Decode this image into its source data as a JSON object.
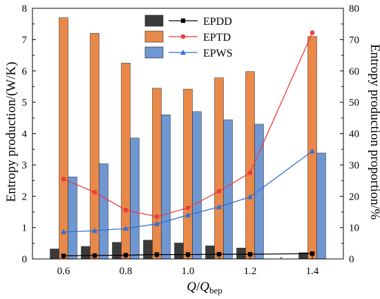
{
  "chart_data": {
    "type": "bar+line",
    "xlabel_main": "Q",
    "xlabel_sep": "/",
    "xlabel_sub_main": "Q",
    "xlabel_sub_script": "bep",
    "ylabel_left": "Entropy production/(W/K)",
    "ylabel_right": "Entropy production proportion/%",
    "categories": [
      "0.6",
      "0.7",
      "0.8",
      "0.9",
      "1.0",
      "1.1",
      "1.2",
      "1.4"
    ],
    "category_values": [
      0.6,
      0.7,
      0.8,
      0.9,
      1.0,
      1.1,
      1.2,
      1.4
    ],
    "xlim": [
      0.5,
      1.5
    ],
    "xticks": [
      "0.6",
      "0.8",
      "1.0",
      "1.2",
      "1.4"
    ],
    "xtick_values": [
      0.6,
      0.8,
      1.0,
      1.2,
      1.4
    ],
    "ylim_left": [
      0,
      8
    ],
    "yticks_left": [
      "0",
      "1",
      "2",
      "3",
      "4",
      "5",
      "6",
      "7",
      "8"
    ],
    "ylim_right": [
      0,
      80
    ],
    "yticks_right": [
      "0",
      "10",
      "20",
      "30",
      "40",
      "50",
      "60",
      "70",
      "80"
    ],
    "bar_series": [
      {
        "name": "EPDD",
        "color": "#3a3a3a",
        "values": [
          0.32,
          0.4,
          0.53,
          0.6,
          0.51,
          0.42,
          0.35,
          0.2
        ]
      },
      {
        "name": "EPTD",
        "color": "#e8894a",
        "values": [
          7.7,
          7.2,
          6.25,
          5.45,
          5.42,
          5.78,
          5.98,
          7.1
        ]
      },
      {
        "name": "EPWS",
        "color": "#6f97d2",
        "values": [
          2.62,
          3.04,
          3.86,
          4.6,
          4.7,
          4.44,
          4.3,
          3.38
        ]
      }
    ],
    "line_series": [
      {
        "name": "EPDD",
        "color": "#000000",
        "marker": "square",
        "values": [
          1.0,
          1.1,
          1.2,
          1.4,
          1.4,
          1.5,
          1.5,
          1.7
        ]
      },
      {
        "name": "EPTD",
        "color": "#ee3b3b",
        "marker": "circle",
        "values": [
          25.5,
          21.3,
          15.6,
          13.5,
          16.3,
          21.6,
          27.5,
          72.2
        ]
      },
      {
        "name": "EPWS",
        "color": "#2f6fd6",
        "marker": "triangle",
        "values": [
          8.6,
          9.0,
          9.7,
          11.2,
          14.0,
          16.6,
          19.8,
          34.4
        ]
      }
    ],
    "legend_position": "top-center",
    "grid": false
  }
}
